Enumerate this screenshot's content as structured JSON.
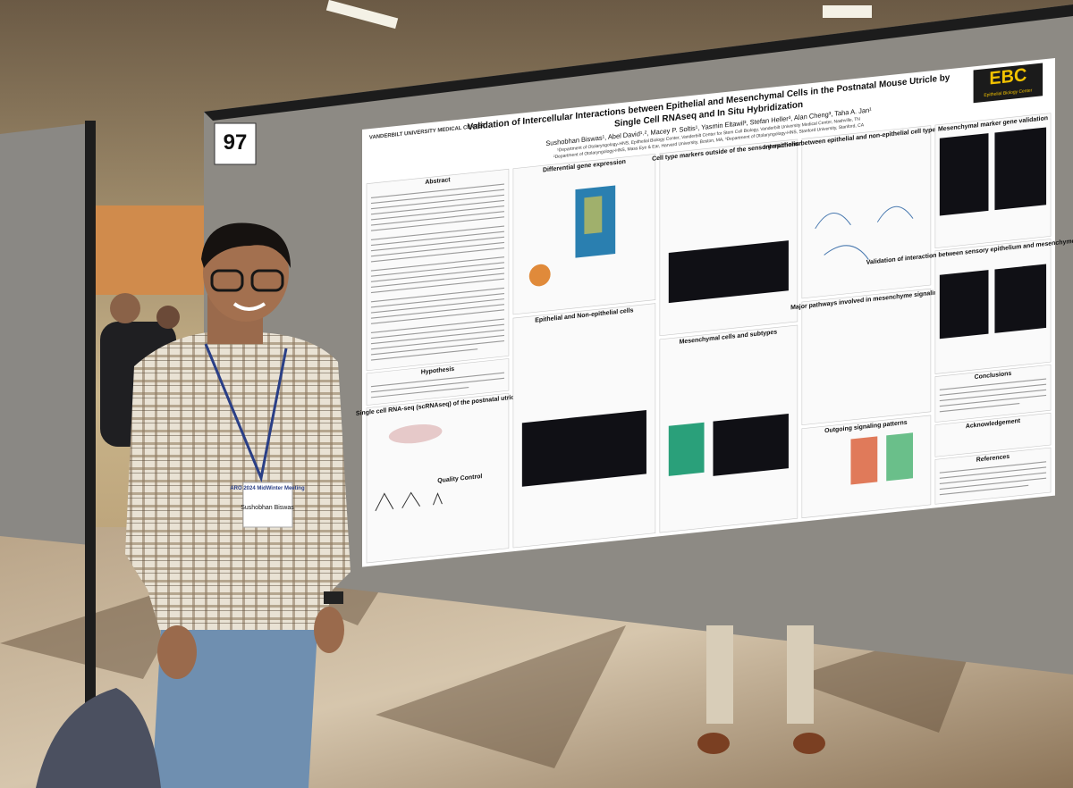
{
  "poster_number": "97",
  "poster": {
    "logo_left": "VANDERBILT UNIVERSITY MEDICAL CENTER",
    "logo_right": "EBC",
    "logo_right_sub": "Epithelial Biology Center",
    "title": [
      "Validation of Intercellular Interactions between Epithelial and Mesenchymal Cells in the Postnatal Mouse Utricle by",
      "Single Cell RNAseq and In Situ Hybridization"
    ],
    "authors": "Sushobhan Biswas¹, Abel David¹˒², Macey P. Soltis¹, Yasmin Eltawil³, Stefan Heller³, Alan Cheng³, Taha A. Jan¹",
    "affiliations": [
      "¹Department of Otolaryngology-HNS, Epithelial Biology Center, Vanderbilt Center for Stem Cell Biology, Vanderbilt University Medical Center, Nashville, TN",
      "²Department of Otolaryngology-HNS, Mass Eye & Ear, Harvard University, Boston, MA, ³Department of Otolaryngology-HNS, Stanford University, Stanford, CA"
    ],
    "sections": [
      "Abstract",
      "Hypothesis",
      "Single cell RNA-seq (scRNAseq) of the postnatal utricle",
      "Quality Control",
      "Differential gene expression",
      "Epithelial and Non-epithelial cells",
      "Cell type markers outside of the sensory epithelium",
      "Mesenchymal cells and subtypes",
      "Interactions between epithelial and non-epithelial cell types: CellChat",
      "Major pathways involved in mesenchyme signaling",
      "Outgoing signaling patterns",
      "Mesenchymal marker gene validation",
      "Validation of interaction between sensory epithelium and mesenchyme compartments",
      "Conclusions",
      "Acknowledgement",
      "References"
    ]
  },
  "badge": {
    "event": "ARO 2024 MidWinter Meeting",
    "name": "Sushobhan Biswas"
  }
}
